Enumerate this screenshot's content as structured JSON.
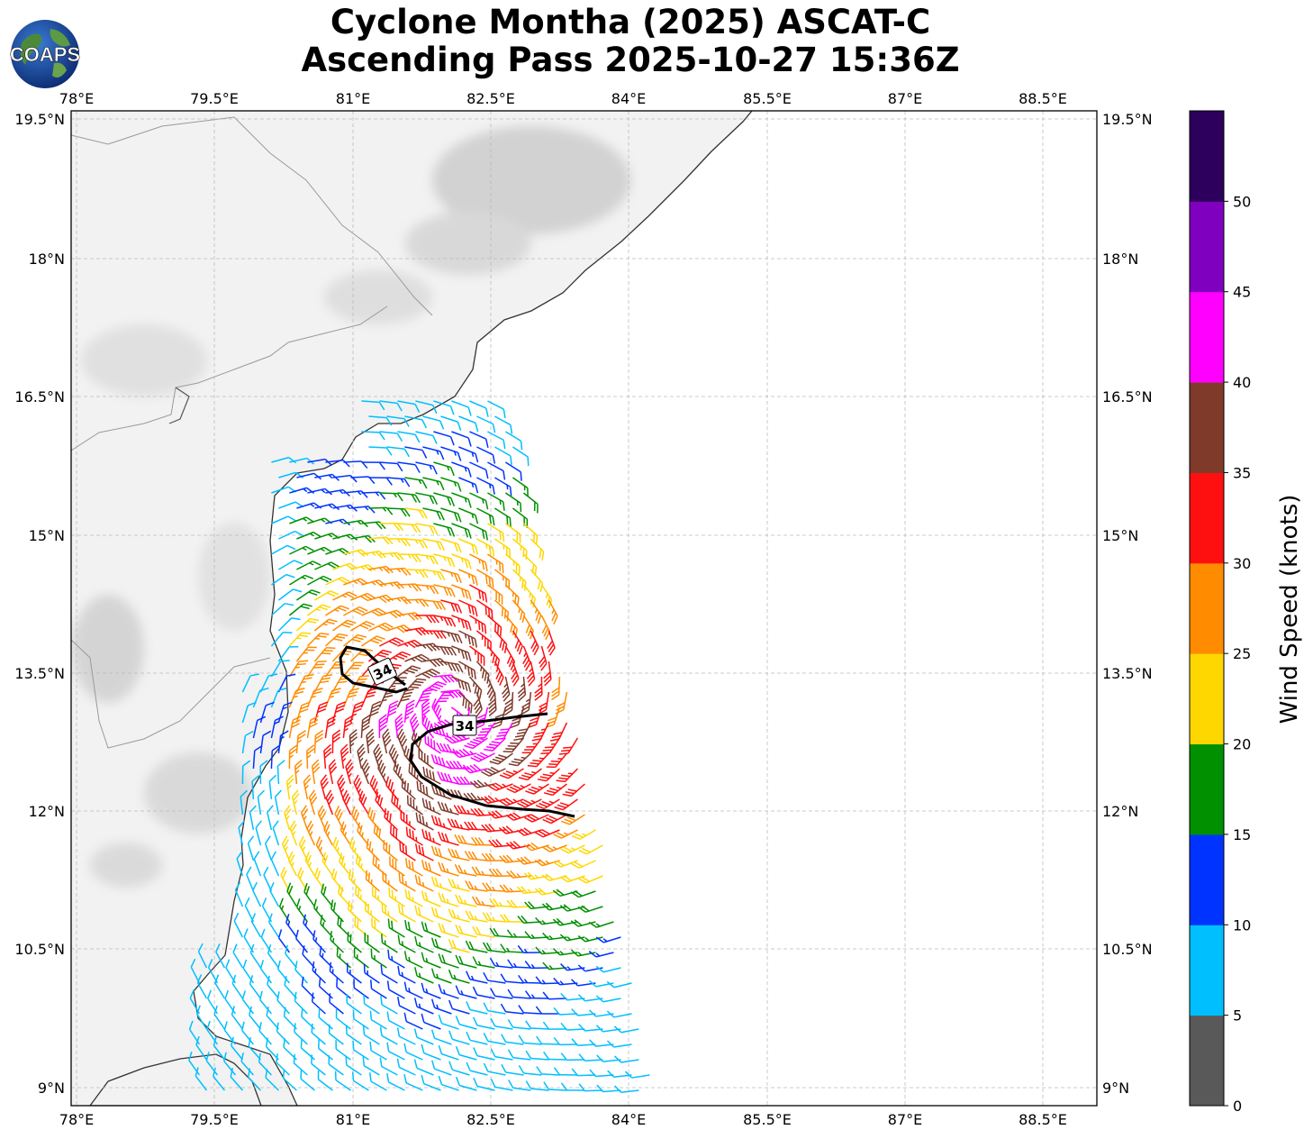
{
  "title_line1": "Cyclone Montha (2025) ASCAT-C",
  "title_line2": "Ascending Pass 2025-10-27 15:36Z",
  "logo_text": "COAPS",
  "lon_ticks": [
    "78°E",
    "79.5°E",
    "81°E",
    "82.5°E",
    "84°E",
    "85.5°E",
    "87°E",
    "88.5°E"
  ],
  "lat_ticks": [
    "19.5°N",
    "18°N",
    "16.5°N",
    "15°N",
    "13.5°N",
    "12°N",
    "10.5°N",
    "9°N"
  ],
  "contour_label": "34",
  "colorbar": {
    "label": "Wind Speed (knots)",
    "ticks": [
      "0",
      "5",
      "10",
      "15",
      "20",
      "25",
      "30",
      "35",
      "40",
      "45",
      "50"
    ],
    "bins": [
      {
        "range": "0-5",
        "color": "#595959"
      },
      {
        "range": "5-10",
        "color": "#00bfff"
      },
      {
        "range": "10-15",
        "color": "#0033ff"
      },
      {
        "range": "15-20",
        "color": "#009000"
      },
      {
        "range": "20-25",
        "color": "#ffd700"
      },
      {
        "range": "25-30",
        "color": "#ff8c00"
      },
      {
        "range": "30-35",
        "color": "#ff1010"
      },
      {
        "range": "35-40",
        "color": "#7f3a2a"
      },
      {
        "range": "40-45",
        "color": "#ff00ff"
      },
      {
        "range": "45-50",
        "color": "#8000c0"
      },
      {
        "range": "50+",
        "color": "#2c005c"
      }
    ]
  },
  "map_extent": {
    "lon_min": 77.95,
    "lon_max": 89.1,
    "lat_min": 8.8,
    "lat_max": 19.6
  }
}
